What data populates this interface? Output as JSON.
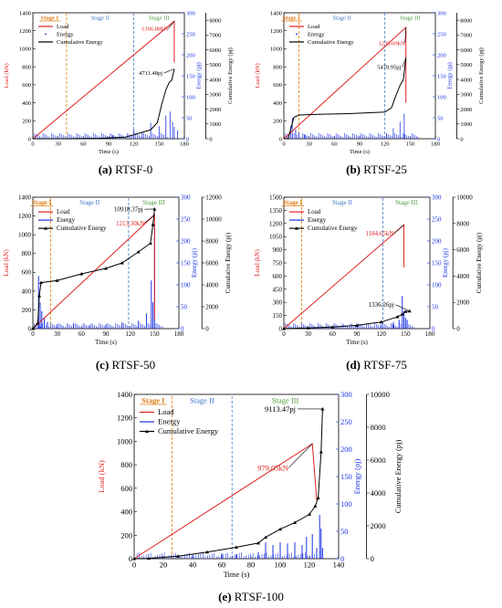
{
  "colors": {
    "load": "#e02020",
    "energy": "#1a33e6",
    "cumulative": "#000000",
    "stage1": "#e07a10",
    "stage2": "#3a78c4",
    "stage3": "#4a9a3a"
  },
  "chart_data": [
    {
      "id": "a",
      "type": "line",
      "caption_letter": "(a)",
      "caption_text": "RTSF-0",
      "xlabel": "Time (s)",
      "ylabel_left": "Load (kN)",
      "ylabel_right_inner": "Energy (pj)",
      "ylabel_right_outer": "Cumulative Energy (pj)",
      "xlim": [
        0,
        180
      ],
      "xticks": [
        0,
        30,
        60,
        90,
        120,
        150,
        180
      ],
      "load_lim": [
        0,
        1400
      ],
      "load_ticks": [
        0,
        200,
        400,
        600,
        800,
        1000,
        1200,
        1400
      ],
      "energy_lim": [
        0,
        300
      ],
      "energy_ticks": [
        0,
        50,
        100,
        150,
        200,
        250,
        300
      ],
      "cum_lim": [
        0,
        8500
      ],
      "cum_ticks": [
        0,
        1000,
        2000,
        3000,
        4000,
        5000,
        6000,
        7000,
        8000
      ],
      "stages": [
        {
          "label": "Stage I",
          "x": 40
        },
        {
          "label": "Stage II",
          "x": 120
        },
        {
          "label": "Stage III",
          "x": null
        }
      ],
      "legend": [
        "Load",
        "Energy",
        "Cumulative Energy"
      ],
      "energy_style": "dots",
      "series": [
        {
          "name": "Load",
          "axis": "load",
          "x": [
            0,
            168,
            168
          ],
          "y": [
            0,
            1306.88,
            850
          ]
        },
        {
          "name": "Cumulative Energy",
          "axis": "cum",
          "x": [
            0,
            40,
            80,
            110,
            140,
            148,
            153,
            158,
            162,
            165,
            168
          ],
          "y": [
            0,
            0,
            30,
            110,
            600,
            1100,
            2300,
            3300,
            3800,
            3950,
            4711.48
          ]
        }
      ],
      "energy_spikes": [
        [
          95,
          8
        ],
        [
          120,
          22
        ],
        [
          130,
          15
        ],
        [
          140,
          38
        ],
        [
          150,
          30
        ],
        [
          158,
          55
        ],
        [
          163,
          65
        ],
        [
          166,
          40
        ],
        [
          168,
          28
        ],
        [
          172,
          20
        ]
      ],
      "annotations": [
        {
          "text": "1306.88kN",
          "color": "load",
          "at": [
            168,
            1306.88
          ],
          "axis": "load",
          "label": [
            145,
            1200
          ]
        },
        {
          "text": "4711.48pj",
          "color": "cumulative",
          "at": [
            168,
            4711.48
          ],
          "axis": "cum",
          "label": [
            140,
            4300
          ]
        }
      ]
    },
    {
      "id": "b",
      "type": "line",
      "caption_letter": "(b)",
      "caption_text": "RTSF-25",
      "xlabel": "Time (s)",
      "ylabel_left": "Load (kN)",
      "ylabel_right_inner": "Energy (pj)",
      "ylabel_right_outer": "Cumulative Energy (pj)",
      "xlim": [
        0,
        180
      ],
      "xticks": [
        0,
        30,
        60,
        90,
        120,
        150,
        180
      ],
      "load_lim": [
        0,
        1400
      ],
      "load_ticks": [
        0,
        200,
        400,
        600,
        800,
        1000,
        1200,
        1400
      ],
      "energy_lim": [
        0,
        300
      ],
      "energy_ticks": [
        0,
        50,
        100,
        150,
        200,
        250,
        300
      ],
      "cum_lim": [
        0,
        8500
      ],
      "cum_ticks": [
        0,
        1000,
        2000,
        3000,
        4000,
        5000,
        6000,
        7000,
        8000
      ],
      "stages": [
        {
          "label": "Stage I",
          "x": 18
        },
        {
          "label": "Stage II",
          "x": 120
        },
        {
          "label": "Stage III",
          "x": null
        }
      ],
      "legend": [
        "Load",
        "Energy",
        "Cumulative Energy"
      ],
      "energy_style": "dots",
      "series": [
        {
          "name": "Load",
          "axis": "load",
          "x": [
            0,
            145,
            145
          ],
          "y": [
            0,
            1238.09,
            400
          ]
        },
        {
          "name": "Cumulative Energy",
          "axis": "cum",
          "x": [
            0,
            5,
            12,
            18,
            40,
            80,
            120,
            128,
            133,
            138,
            142,
            145
          ],
          "y": [
            0,
            0,
            1450,
            1600,
            1650,
            1700,
            1800,
            2100,
            2900,
            3600,
            4000,
            5470.95
          ]
        }
      ],
      "energy_spikes": [
        [
          8,
          30
        ],
        [
          10,
          50
        ],
        [
          14,
          22
        ],
        [
          18,
          15
        ],
        [
          25,
          10
        ],
        [
          60,
          6
        ],
        [
          90,
          8
        ],
        [
          122,
          12
        ],
        [
          130,
          25
        ],
        [
          138,
          40
        ],
        [
          143,
          60
        ]
      ],
      "annotations": [
        {
          "text": "1238.09kN",
          "color": "load",
          "at": [
            145,
            1238.09
          ],
          "axis": "load",
          "label": [
            128,
            1040
          ]
        },
        {
          "text": "5470.95pj",
          "color": "cumulative",
          "at": [
            145,
            5470.95
          ],
          "axis": "cum",
          "label": [
            125,
            4700
          ]
        }
      ]
    },
    {
      "id": "c",
      "type": "line",
      "caption_letter": "(c)",
      "caption_text": "RTSF-50",
      "xlabel": "Time (s)",
      "ylabel_left": "Load (kN)",
      "ylabel_right_inner": "Energy (pj)",
      "ylabel_right_outer": "Cumulative Energy (pj)",
      "xlim": [
        0,
        180
      ],
      "xticks": [
        0,
        30,
        60,
        90,
        120,
        150,
        180
      ],
      "load_lim": [
        0,
        1400
      ],
      "load_ticks": [
        0,
        200,
        400,
        600,
        800,
        1000,
        1200,
        1400
      ],
      "energy_lim": [
        0,
        300
      ],
      "energy_ticks": [
        0,
        50,
        100,
        150,
        200,
        250,
        300
      ],
      "cum_lim": [
        0,
        12000
      ],
      "cum_ticks": [
        0,
        2000,
        4000,
        6000,
        8000,
        10000,
        12000
      ],
      "stages": [
        {
          "label": "Stage I",
          "x": 22
        },
        {
          "label": "Stage II",
          "x": 118
        },
        {
          "label": "Stage III",
          "x": null
        }
      ],
      "legend": [
        "Load",
        "Energy",
        "Cumulative Energy"
      ],
      "energy_style": "bars",
      "series": [
        {
          "name": "Load",
          "axis": "load",
          "x": [
            0,
            150,
            150
          ],
          "y": [
            0,
            1213.3,
            100
          ]
        },
        {
          "name": "Cumulative Energy",
          "axis": "cum",
          "x": [
            0,
            6,
            8,
            10,
            30,
            60,
            90,
            110,
            130,
            145,
            148,
            150
          ],
          "y": [
            0,
            500,
            3000,
            4200,
            4400,
            5000,
            5500,
            6000,
            7000,
            7800,
            9500,
            10918.37
          ]
        }
      ],
      "energy_spikes": [
        [
          7,
          120
        ],
        [
          9,
          60
        ],
        [
          11,
          40
        ],
        [
          14,
          25
        ],
        [
          18,
          15
        ],
        [
          30,
          10
        ],
        [
          50,
          12
        ],
        [
          70,
          8
        ],
        [
          90,
          10
        ],
        [
          110,
          14
        ],
        [
          130,
          18
        ],
        [
          140,
          35
        ],
        [
          146,
          110
        ],
        [
          148,
          60
        ],
        [
          150,
          240
        ]
      ],
      "annotations": [
        {
          "text": "10918.37pj",
          "color": "cumulative",
          "at": [
            150,
            10918.37
          ],
          "axis": "cum",
          "label": [
            118,
            10700
          ]
        },
        {
          "text": "1213.30kN",
          "color": "load",
          "at": [
            150,
            1213.3
          ],
          "axis": "load",
          "label": [
            120,
            1100
          ]
        }
      ]
    },
    {
      "id": "d",
      "type": "line",
      "caption_letter": "(d)",
      "caption_text": "RTSF-75",
      "xlabel": "Time (s)",
      "ylabel_left": "Load (kN)",
      "ylabel_right_inner": "Energy (pj)",
      "ylabel_right_outer": "Cumulative Energy (pj)",
      "xlim": [
        0,
        180
      ],
      "xticks": [
        0,
        30,
        60,
        90,
        120,
        150,
        180
      ],
      "load_lim": [
        0,
        1500
      ],
      "load_ticks": [
        0,
        150,
        300,
        450,
        600,
        750,
        900,
        1050,
        1200,
        1350,
        1500
      ],
      "energy_lim": [
        0,
        300
      ],
      "energy_ticks": [
        0,
        50,
        100,
        150,
        200,
        250,
        300
      ],
      "cum_lim": [
        0,
        10000
      ],
      "cum_ticks": [
        0,
        2000,
        4000,
        6000,
        8000,
        10000
      ],
      "stages": [
        {
          "label": "Stage I",
          "x": 22
        },
        {
          "label": "Stage II",
          "x": 122
        },
        {
          "label": "Stage III",
          "x": null
        }
      ],
      "legend": [
        "Load",
        "Energy",
        "Cumulative Energy"
      ],
      "energy_style": "bars",
      "series": [
        {
          "name": "Load",
          "axis": "load",
          "x": [
            0,
            148,
            148
          ],
          "y": [
            0,
            1184.65,
            700
          ]
        },
        {
          "name": "Cumulative Energy",
          "axis": "cum",
          "x": [
            0,
            30,
            60,
            90,
            120,
            140,
            146,
            150,
            155
          ],
          "y": [
            0,
            50,
            120,
            250,
            500,
            900,
            1100,
            1300,
            1336.26
          ]
        }
      ],
      "energy_spikes": [
        [
          60,
          6
        ],
        [
          90,
          8
        ],
        [
          120,
          10
        ],
        [
          135,
          15
        ],
        [
          142,
          20
        ],
        [
          146,
          75
        ],
        [
          148,
          40
        ],
        [
          150,
          25
        ],
        [
          152,
          20
        ]
      ],
      "annotations": [
        {
          "text": "1184.65kN",
          "color": "load",
          "at": [
            148,
            1184.65
          ],
          "axis": "load",
          "label": [
            118,
            1060
          ]
        },
        {
          "text": "1336.26pj",
          "color": "cumulative",
          "at": [
            155,
            1336.26
          ],
          "axis": "cum",
          "label": [
            120,
            1650
          ]
        }
      ]
    },
    {
      "id": "e",
      "type": "line",
      "caption_letter": "(e)",
      "caption_text": "RTSF-100",
      "xlabel": "Time (s)",
      "ylabel_left": "Load (kN)",
      "ylabel_right_inner": "Energy (pj)",
      "ylabel_right_outer": "Cumulative Energy (pj)",
      "xlim": [
        0,
        140
      ],
      "xticks": [
        0,
        20,
        40,
        60,
        80,
        100,
        120,
        140
      ],
      "load_lim": [
        0,
        1400
      ],
      "load_ticks": [
        0,
        200,
        400,
        600,
        800,
        1000,
        1200,
        1400
      ],
      "energy_lim": [
        0,
        300
      ],
      "energy_ticks": [
        0,
        50,
        100,
        150,
        200,
        250,
        300
      ],
      "cum_lim": [
        0,
        10000
      ],
      "cum_ticks": [
        0,
        2000,
        4000,
        6000,
        8000,
        10000
      ],
      "stages": [
        {
          "label": "Stage I",
          "x": 26
        },
        {
          "label": "Stage II",
          "x": 67
        },
        {
          "label": "Stage III",
          "x": null
        }
      ],
      "legend": [
        "Load",
        "Energy",
        "Cumulative Energy"
      ],
      "energy_style": "bars",
      "series": [
        {
          "name": "Load",
          "axis": "load",
          "x": [
            0,
            122,
            125
          ],
          "y": [
            0,
            979.05,
            500
          ]
        },
        {
          "name": "Cumulative Energy",
          "axis": "cum",
          "x": [
            0,
            10,
            30,
            50,
            70,
            85,
            90,
            100,
            110,
            120,
            124,
            126,
            128,
            129
          ],
          "y": [
            0,
            20,
            150,
            400,
            700,
            950,
            1300,
            1800,
            2200,
            2700,
            3200,
            3700,
            6500,
            9113.47
          ]
        }
      ],
      "energy_spikes": [
        [
          40,
          8
        ],
        [
          60,
          10
        ],
        [
          70,
          8
        ],
        [
          85,
          12
        ],
        [
          90,
          30
        ],
        [
          95,
          25
        ],
        [
          100,
          30
        ],
        [
          105,
          28
        ],
        [
          110,
          30
        ],
        [
          115,
          25
        ],
        [
          118,
          40
        ],
        [
          122,
          45
        ],
        [
          125,
          20
        ],
        [
          127,
          80
        ],
        [
          128,
          55
        ],
        [
          129,
          20
        ]
      ],
      "annotations": [
        {
          "text": "9113.47pj",
          "color": "cumulative",
          "at": [
            129,
            9113.47
          ],
          "axis": "cum",
          "label": [
            100,
            8950
          ]
        },
        {
          "text": "979.05kN",
          "color": "load",
          "at": [
            122,
            979.05
          ],
          "axis": "load",
          "label": [
            95,
            750
          ]
        }
      ]
    }
  ]
}
